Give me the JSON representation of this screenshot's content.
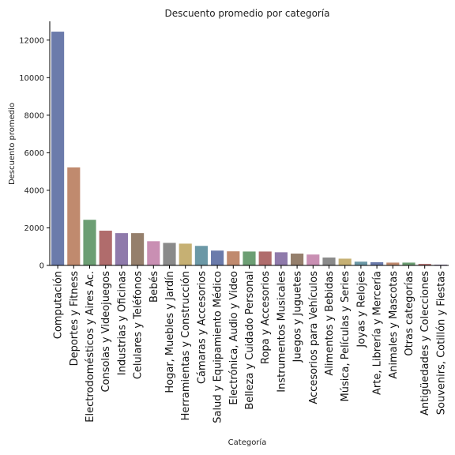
{
  "chart_data": {
    "type": "bar",
    "title": "Descuento promedio por categoría",
    "xlabel": "Categoría",
    "ylabel": "Descuento promedio",
    "ylim": [
      0,
      13000
    ],
    "yticks": [
      0,
      2000,
      4000,
      6000,
      8000,
      10000,
      12000
    ],
    "grid": false,
    "categories": [
      "Computación",
      "Deportes y Fitness",
      "Electrodomésticos y Aires Ac.",
      "Consolas y Videojuegos",
      "Industrias y Oficinas",
      "Celulares y Teléfonos",
      "Bebés",
      "Hogar, Muebles y Jardín",
      "Herramientas y Construcción",
      "Cámaras y Accesorios",
      "Salud y Equipamiento Médico",
      "Electrónica, Audio y Video",
      "Belleza y Cuidado Personal",
      "Ropa y Accesorios",
      "Instrumentos Musicales",
      "Juegos y Juguetes",
      "Accesorios para Vehículos",
      "Alimentos y Bebidas",
      "Música, Películas y Series",
      "Joyas y Relojes",
      "Arte, Librería y Mercería",
      "Animales y Mascotas",
      "Otras categorías",
      "Antigüedades y Colecciones",
      "Souvenirs, Cotillón y Fiestas"
    ],
    "values": [
      12450,
      5220,
      2430,
      1850,
      1720,
      1720,
      1290,
      1200,
      1160,
      1040,
      790,
      750,
      740,
      740,
      700,
      630,
      580,
      420,
      360,
      200,
      170,
      150,
      150,
      80,
      40
    ],
    "colors": [
      "#6b7bab",
      "#c08a6e",
      "#6c9e73",
      "#b06c6c",
      "#8f7aab",
      "#957f6c",
      "#c98fb3",
      "#8a8a8a",
      "#c6b073",
      "#6b98a6",
      "#6b7bab",
      "#c08a6e",
      "#6c9e73",
      "#b06c6c",
      "#8f7aab",
      "#957f6c",
      "#c98fb3",
      "#8a8a8a",
      "#c6b073",
      "#6b98a6",
      "#6b7bab",
      "#c08a6e",
      "#6c9e73",
      "#b06c6c",
      "#8f7aab"
    ]
  }
}
